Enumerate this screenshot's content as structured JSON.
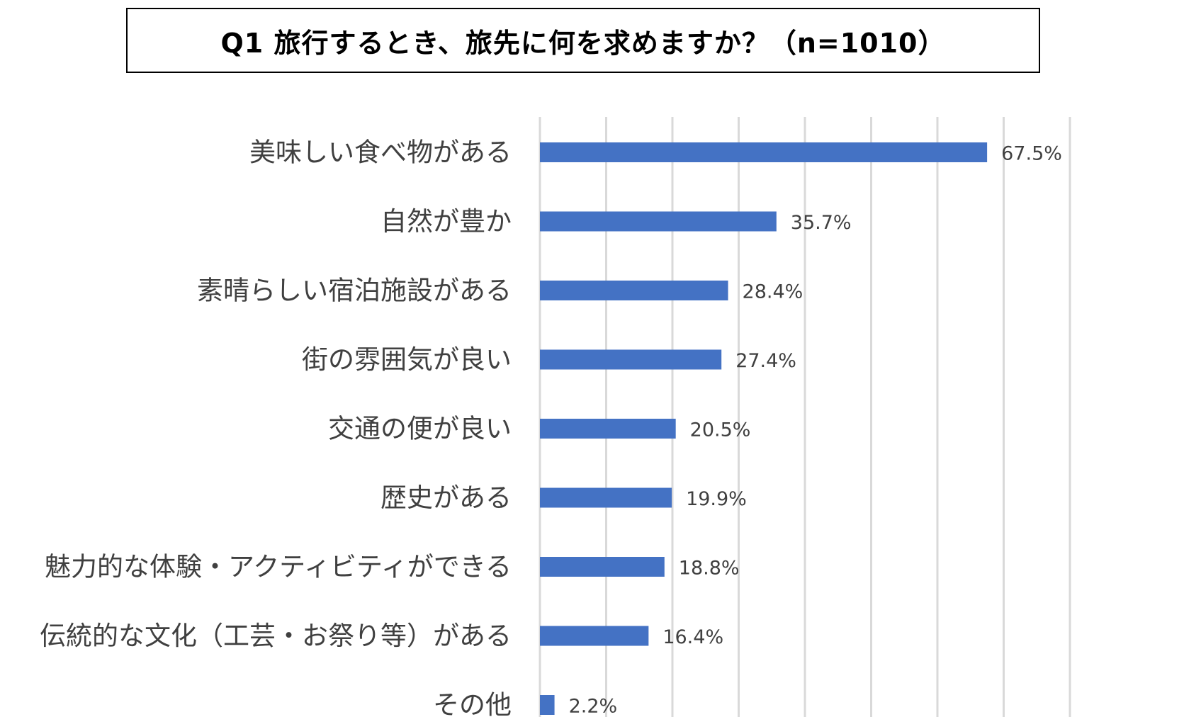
{
  "title": "Q1 旅行するとき、旅先に何を求めますか？（n=1010）",
  "chart_data": {
    "type": "bar",
    "orientation": "horizontal",
    "title": "Q1 旅行するとき、旅先に何を求めますか？（n=1010）",
    "categories": [
      "美味しい食べ物がある",
      "自然が豊か",
      "素晴らしい宿泊施設がある",
      "街の雰囲気が良い",
      "交通の便が良い",
      "歴史がある",
      "魅力的な体験・アクティビティができる",
      "伝統的な文化（工芸・お祭り等）がある",
      "その他"
    ],
    "values": [
      67.5,
      35.7,
      28.4,
      27.4,
      20.5,
      19.9,
      18.8,
      16.4,
      2.2
    ],
    "value_labels": [
      "67.5%",
      "35.7%",
      "28.4%",
      "27.4%",
      "20.5%",
      "19.9%",
      "18.8%",
      "16.4%",
      "2.2%"
    ],
    "xlim": [
      0,
      80
    ],
    "grid_step": 10,
    "grid": true,
    "bar_color": "#4472c4",
    "xlabel": "",
    "ylabel": ""
  }
}
